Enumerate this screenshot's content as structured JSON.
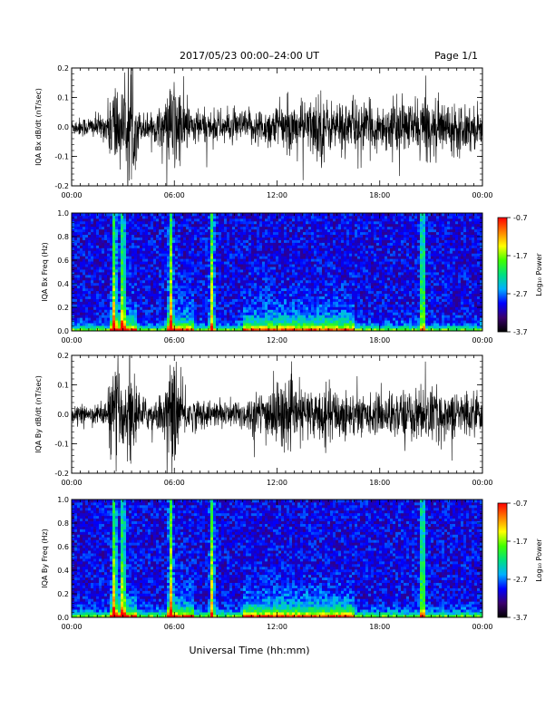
{
  "header": {
    "title": "2017/05/23  00:00–24:00 UT",
    "page": "Page 1/1"
  },
  "footer": {
    "xlabel": "Universal Time (hh:mm)"
  },
  "colorbar": {
    "label": "Log₁₀ Power",
    "tick_labels": [
      "-0.7",
      "-1.7",
      "-2.7",
      "-3.7"
    ],
    "range": [
      -3.7,
      -0.7
    ],
    "colors": [
      "#000000",
      "#3a006e",
      "#0000ff",
      "#00b0ff",
      "#00e080",
      "#40ff00",
      "#ffff00",
      "#ff8000",
      "#ff0000"
    ]
  },
  "chart_data": [
    {
      "type": "line",
      "ylabel": "IQA Bx dB/dt (nT/sec)",
      "ylim": [
        -0.2,
        0.2
      ],
      "yticks": [
        "0.2",
        "0.1",
        "0.0",
        "-0.1",
        "-0.2"
      ],
      "xlim": [
        "00:00",
        "24:00"
      ],
      "xticks": [
        "00:00",
        "06:00",
        "12:00",
        "18:00",
        "00:00"
      ],
      "envelope_x_hours": [
        0,
        1,
        2,
        2.5,
        3,
        3.5,
        4,
        5,
        5.5,
        6,
        6.5,
        7,
        8,
        9,
        10,
        11,
        12,
        13,
        14,
        14.5,
        15,
        16,
        17,
        18,
        19,
        20,
        20.5,
        21,
        22,
        23,
        24
      ],
      "envelope_amplitude": [
        0.03,
        0.04,
        0.05,
        0.2,
        0.12,
        0.2,
        0.05,
        0.06,
        0.1,
        0.2,
        0.12,
        0.07,
        0.06,
        0.06,
        0.06,
        0.07,
        0.08,
        0.09,
        0.1,
        0.15,
        0.09,
        0.1,
        0.09,
        0.08,
        0.1,
        0.09,
        0.13,
        0.1,
        0.09,
        0.09,
        0.07
      ],
      "color": "#000000"
    },
    {
      "type": "heatmap",
      "ylabel": "IQA Bx Freq (Hz)",
      "ylim": [
        0.0,
        1.0
      ],
      "yticks": [
        "1.0",
        "0.8",
        "0.6",
        "0.4",
        "0.2",
        "0.0"
      ],
      "xlim": [
        "00:00",
        "24:00"
      ],
      "xticks": [
        "00:00",
        "06:00",
        "12:00",
        "18:00",
        "00:00"
      ],
      "zlim": [
        -3.7,
        -0.7
      ],
      "bright_vertical_bands_hours": [
        2.5,
        3.0,
        5.8,
        8.2,
        20.5
      ],
      "low_freq_enhancement_hours": [
        [
          2.3,
          3.8
        ],
        [
          5.5,
          7.2
        ],
        [
          10.0,
          16.5
        ]
      ]
    },
    {
      "type": "line",
      "ylabel": "IQA By dB/dt (nT/sec)",
      "ylim": [
        -0.2,
        0.2
      ],
      "yticks": [
        "0.2",
        "0.1",
        "0.0",
        "-0.1",
        "-0.2"
      ],
      "xlim": [
        "00:00",
        "24:00"
      ],
      "xticks": [
        "00:00",
        "06:00",
        "12:00",
        "18:00",
        "00:00"
      ],
      "envelope_x_hours": [
        0,
        1,
        2,
        2.5,
        3,
        3.5,
        4,
        5,
        5.5,
        6,
        6.5,
        7,
        8,
        9,
        10,
        11,
        12,
        13,
        14,
        15,
        16,
        17,
        18,
        19,
        20,
        20.5,
        21,
        22,
        23,
        24
      ],
      "envelope_amplitude": [
        0.03,
        0.03,
        0.05,
        0.2,
        0.12,
        0.2,
        0.06,
        0.06,
        0.1,
        0.2,
        0.1,
        0.06,
        0.05,
        0.05,
        0.06,
        0.08,
        0.13,
        0.1,
        0.09,
        0.1,
        0.09,
        0.07,
        0.07,
        0.09,
        0.09,
        0.1,
        0.1,
        0.08,
        0.09,
        0.06
      ],
      "color": "#000000"
    },
    {
      "type": "heatmap",
      "ylabel": "IQA By Freq (Hz)",
      "ylim": [
        0.0,
        1.0
      ],
      "yticks": [
        "1.0",
        "0.8",
        "0.6",
        "0.4",
        "0.2",
        "0.0"
      ],
      "xlim": [
        "00:00",
        "24:00"
      ],
      "xticks": [
        "00:00",
        "06:00",
        "12:00",
        "18:00",
        "00:00"
      ],
      "zlim": [
        -3.7,
        -0.7
      ],
      "bright_vertical_bands_hours": [
        2.5,
        3.0,
        5.8,
        8.2,
        20.5
      ],
      "low_freq_enhancement_hours": [
        [
          2.3,
          3.8
        ],
        [
          5.5,
          7.2
        ],
        [
          10.0,
          16.5
        ]
      ]
    }
  ]
}
